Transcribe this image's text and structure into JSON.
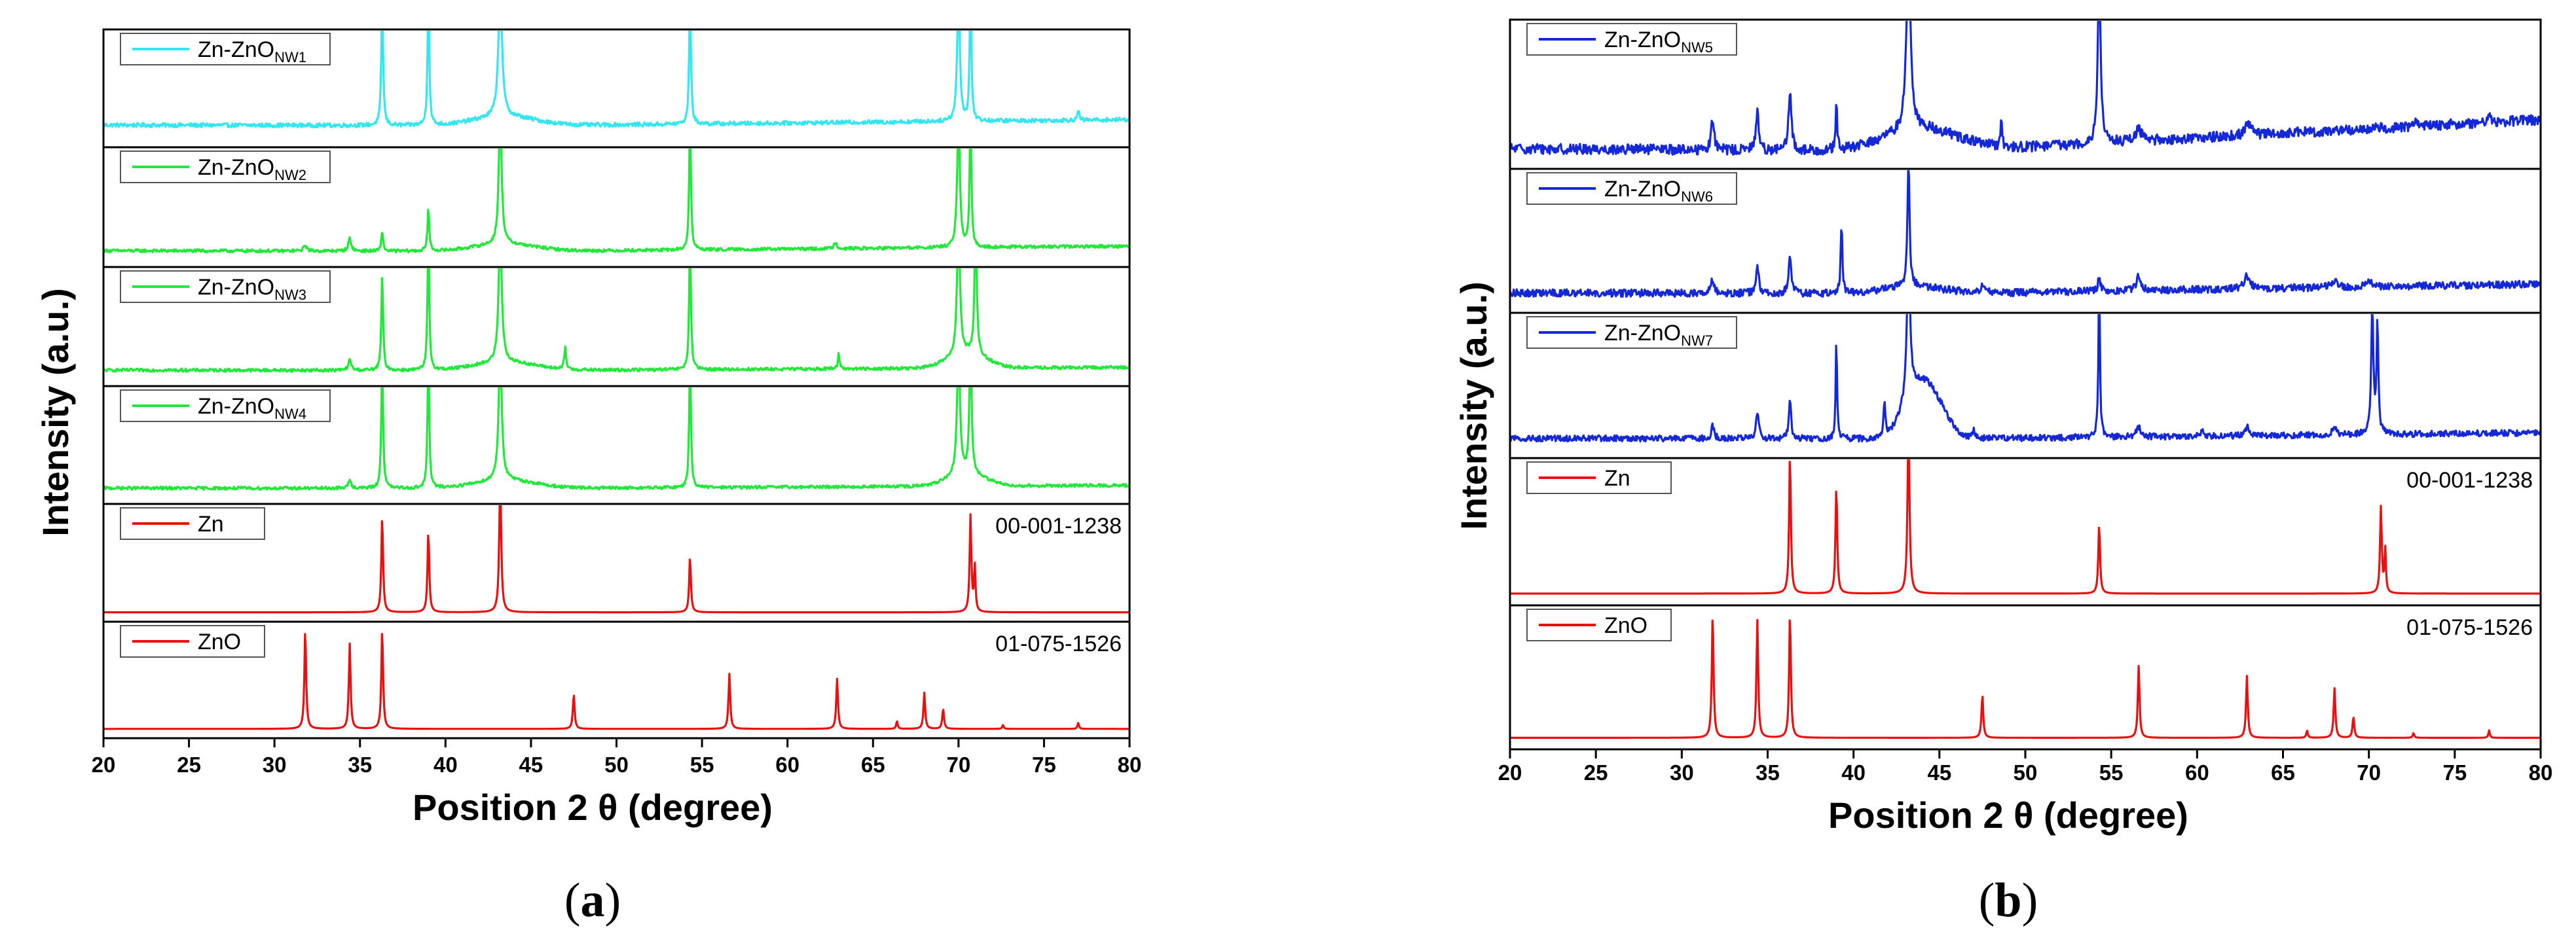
{
  "figure": {
    "colors": {
      "cyan": "#33e6f0",
      "green": "#22e83a",
      "blue": "#1428d8",
      "red": "#e81010"
    }
  },
  "chart_data": [
    {
      "type": "line",
      "panel": "a",
      "caption_letter": "a",
      "xlabel": "Position 2 θ (degree)",
      "ylabel": "Intensity (a.u.)",
      "xlim": [
        20,
        80
      ],
      "xticks": [
        20,
        25,
        30,
        35,
        40,
        45,
        50,
        55,
        60,
        65,
        70,
        75,
        80
      ],
      "series": [
        {
          "name": "Zn-ZnO NW1",
          "label_main": "Zn-ZnO",
          "label_sub": "NW1",
          "reference_code": "",
          "color": "#33e6f0",
          "baseline": 0.12,
          "slope": 0.06,
          "noise": 0.02,
          "humps": [
            [
              43.5,
              0.09,
              2.5
            ]
          ],
          "peaks": [
            [
              36.3,
              1.3,
              0.12
            ],
            [
              39.0,
              1.3,
              0.12
            ],
            [
              43.2,
              1.3,
              0.25
            ],
            [
              54.3,
              1.3,
              0.12
            ],
            [
              70.0,
              1.3,
              0.18
            ],
            [
              70.7,
              1.3,
              0.12
            ],
            [
              77.0,
              0.1,
              0.12
            ]
          ]
        },
        {
          "name": "Zn-ZnO NW2",
          "label_main": "Zn-ZnO",
          "label_sub": "NW2",
          "reference_code": "",
          "color": "#22e83a",
          "baseline": 0.06,
          "slope": 0.05,
          "noise": 0.015,
          "humps": [
            [
              43.5,
              0.07,
              2.5
            ]
          ],
          "peaks": [
            [
              31.8,
              0.06,
              0.2
            ],
            [
              34.4,
              0.12,
              0.2
            ],
            [
              36.3,
              0.2,
              0.12
            ],
            [
              39.0,
              0.42,
              0.12
            ],
            [
              43.2,
              1.3,
              0.2
            ],
            [
              54.3,
              1.3,
              0.12
            ],
            [
              70.0,
              1.3,
              0.18
            ],
            [
              70.7,
              1.3,
              0.12
            ],
            [
              62.8,
              0.06,
              0.2
            ]
          ]
        },
        {
          "name": "Zn-ZnO NW3",
          "label_main": "Zn-ZnO",
          "label_sub": "NW3",
          "reference_code": "",
          "color": "#22e83a",
          "baseline": 0.06,
          "slope": 0.03,
          "noise": 0.015,
          "humps": [
            [
              43.5,
              0.08,
              2.5
            ],
            [
              70.5,
              0.15,
              1.5
            ]
          ],
          "peaks": [
            [
              34.4,
              0.1,
              0.2
            ],
            [
              36.3,
              0.95,
              0.12
            ],
            [
              39.0,
              1.3,
              0.12
            ],
            [
              43.2,
              1.3,
              0.22
            ],
            [
              47.0,
              0.22,
              0.12
            ],
            [
              54.3,
              1.3,
              0.12
            ],
            [
              63.0,
              0.15,
              0.12
            ],
            [
              70.0,
              1.3,
              0.2
            ],
            [
              71.0,
              1.3,
              0.15
            ]
          ]
        },
        {
          "name": "Zn-ZnO NW4",
          "label_main": "Zn-ZnO",
          "label_sub": "NW4",
          "reference_code": "",
          "color": "#22e83a",
          "baseline": 0.06,
          "slope": 0.03,
          "noise": 0.015,
          "humps": [
            [
              43.5,
              0.08,
              2.5
            ],
            [
              70.5,
              0.12,
              1.5
            ]
          ],
          "peaks": [
            [
              34.4,
              0.08,
              0.2
            ],
            [
              36.3,
              1.3,
              0.12
            ],
            [
              39.0,
              1.3,
              0.12
            ],
            [
              43.2,
              1.3,
              0.22
            ],
            [
              54.3,
              1.3,
              0.12
            ],
            [
              70.0,
              1.3,
              0.2
            ],
            [
              70.7,
              1.3,
              0.15
            ]
          ]
        },
        {
          "name": "Zn",
          "label_main": "Zn",
          "label_sub": "",
          "reference_code": "00-001-1238",
          "color": "#e81010",
          "baseline": 0.0,
          "slope": 0.0,
          "noise": 0.0,
          "humps": [],
          "peaks": [
            [
              36.3,
              0.95,
              0.12
            ],
            [
              39.0,
              0.8,
              0.12
            ],
            [
              43.2,
              1.3,
              0.14
            ],
            [
              54.3,
              0.55,
              0.12
            ],
            [
              70.7,
              0.95,
              0.12
            ],
            [
              70.95,
              0.45,
              0.1
            ]
          ]
        },
        {
          "name": "ZnO",
          "label_main": "ZnO",
          "label_sub": "",
          "reference_code": "01-075-1526",
          "color": "#e81010",
          "baseline": 0.0,
          "slope": 0.0,
          "noise": 0.0,
          "humps": [],
          "peaks": [
            [
              31.8,
              1.0,
              0.12
            ],
            [
              34.4,
              0.85,
              0.12
            ],
            [
              36.3,
              1.0,
              0.12
            ],
            [
              47.5,
              0.35,
              0.12
            ],
            [
              56.6,
              0.55,
              0.12
            ],
            [
              62.9,
              0.5,
              0.12
            ],
            [
              66.4,
              0.08,
              0.1
            ],
            [
              68.0,
              0.36,
              0.12
            ],
            [
              69.1,
              0.2,
              0.12
            ],
            [
              72.6,
              0.04,
              0.1
            ],
            [
              77.0,
              0.06,
              0.1
            ]
          ]
        }
      ]
    },
    {
      "type": "line",
      "panel": "b",
      "caption_letter": "b",
      "xlabel": "Position 2 θ (degree)",
      "ylabel": "Intensity (a.u.)",
      "xlim": [
        20,
        80
      ],
      "xticks": [
        20,
        25,
        30,
        35,
        40,
        45,
        50,
        55,
        60,
        65,
        70,
        75,
        80
      ],
      "series": [
        {
          "name": "Zn-ZnO NW5",
          "label_main": "Zn-ZnO",
          "label_sub": "NW5",
          "reference_code": "",
          "color": "#1428d8",
          "baseline": 0.04,
          "slope": 0.25,
          "noise": 0.04,
          "humps": [
            [
              44.0,
              0.18,
              3.0
            ]
          ],
          "peaks": [
            [
              31.8,
              0.25,
              0.2
            ],
            [
              34.4,
              0.3,
              0.2
            ],
            [
              36.3,
              0.45,
              0.2
            ],
            [
              39.0,
              0.38,
              0.1
            ],
            [
              43.2,
              1.3,
              0.3
            ],
            [
              48.6,
              0.2,
              0.1
            ],
            [
              54.3,
              1.3,
              0.2
            ],
            [
              56.6,
              0.12,
              0.3
            ],
            [
              63.0,
              0.1,
              0.4
            ],
            [
              72.8,
              0.05,
              0.3
            ],
            [
              77.0,
              0.06,
              0.3
            ]
          ]
        },
        {
          "name": "Zn-ZnO NW6",
          "label_main": "Zn-ZnO",
          "label_sub": "NW6",
          "reference_code": "",
          "color": "#1428d8",
          "baseline": 0.06,
          "slope": 0.08,
          "noise": 0.03,
          "humps": [
            [
              43.5,
              0.06,
              2.5
            ]
          ],
          "peaks": [
            [
              31.8,
              0.12,
              0.2
            ],
            [
              34.4,
              0.22,
              0.2
            ],
            [
              36.3,
              0.28,
              0.2
            ],
            [
              39.3,
              0.55,
              0.12
            ],
            [
              43.2,
              1.0,
              0.15
            ],
            [
              47.5,
              0.06,
              0.3
            ],
            [
              54.3,
              0.1,
              0.2
            ],
            [
              56.6,
              0.12,
              0.3
            ],
            [
              62.9,
              0.1,
              0.4
            ],
            [
              68.0,
              0.06,
              0.4
            ],
            [
              70.0,
              0.06,
              0.3
            ]
          ]
        },
        {
          "name": "Zn-ZnO NW7",
          "label_main": "Zn-ZnO",
          "label_sub": "NW7",
          "reference_code": "",
          "color": "#1428d8",
          "baseline": 0.06,
          "slope": 0.05,
          "noise": 0.025,
          "humps": [
            [
              44.5,
              0.35,
              1.2
            ],
            [
              43.4,
              0.25,
              1.0
            ]
          ],
          "peaks": [
            [
              31.8,
              0.1,
              0.2
            ],
            [
              34.4,
              0.2,
              0.2
            ],
            [
              36.3,
              0.32,
              0.15
            ],
            [
              39.0,
              0.78,
              0.1
            ],
            [
              41.8,
              0.25,
              0.15
            ],
            [
              43.2,
              1.3,
              0.2
            ],
            [
              47.0,
              0.06,
              0.2
            ],
            [
              54.3,
              1.3,
              0.1
            ],
            [
              56.6,
              0.08,
              0.3
            ],
            [
              60.3,
              0.06,
              0.15
            ],
            [
              62.9,
              0.07,
              0.3
            ],
            [
              68.0,
              0.05,
              0.3
            ],
            [
              70.2,
              1.0,
              0.15
            ],
            [
              70.5,
              0.9,
              0.12
            ]
          ]
        },
        {
          "name": "Zn",
          "label_main": "Zn",
          "label_sub": "",
          "reference_code": "00-001-1238",
          "color": "#e81010",
          "baseline": 0.0,
          "slope": 0.0,
          "noise": 0.0,
          "humps": [],
          "peaks": [
            [
              36.3,
              1.1,
              0.12
            ],
            [
              39.0,
              0.85,
              0.12
            ],
            [
              43.2,
              1.3,
              0.14
            ],
            [
              54.3,
              0.55,
              0.12
            ],
            [
              70.7,
              0.68,
              0.12
            ],
            [
              70.95,
              0.35,
              0.1
            ]
          ]
        },
        {
          "name": "ZnO",
          "label_main": "ZnO",
          "label_sub": "",
          "reference_code": "01-075-1526",
          "color": "#e81010",
          "baseline": 0.0,
          "slope": 0.0,
          "noise": 0.0,
          "humps": [],
          "peaks": [
            [
              31.8,
              1.0,
              0.12
            ],
            [
              34.4,
              0.95,
              0.12
            ],
            [
              36.3,
              1.0,
              0.12
            ],
            [
              47.5,
              0.35,
              0.12
            ],
            [
              56.6,
              0.58,
              0.12
            ],
            [
              62.9,
              0.5,
              0.12
            ],
            [
              66.4,
              0.06,
              0.1
            ],
            [
              68.0,
              0.4,
              0.12
            ],
            [
              69.1,
              0.17,
              0.12
            ],
            [
              72.6,
              0.04,
              0.1
            ],
            [
              77.0,
              0.06,
              0.1
            ]
          ]
        }
      ]
    }
  ]
}
